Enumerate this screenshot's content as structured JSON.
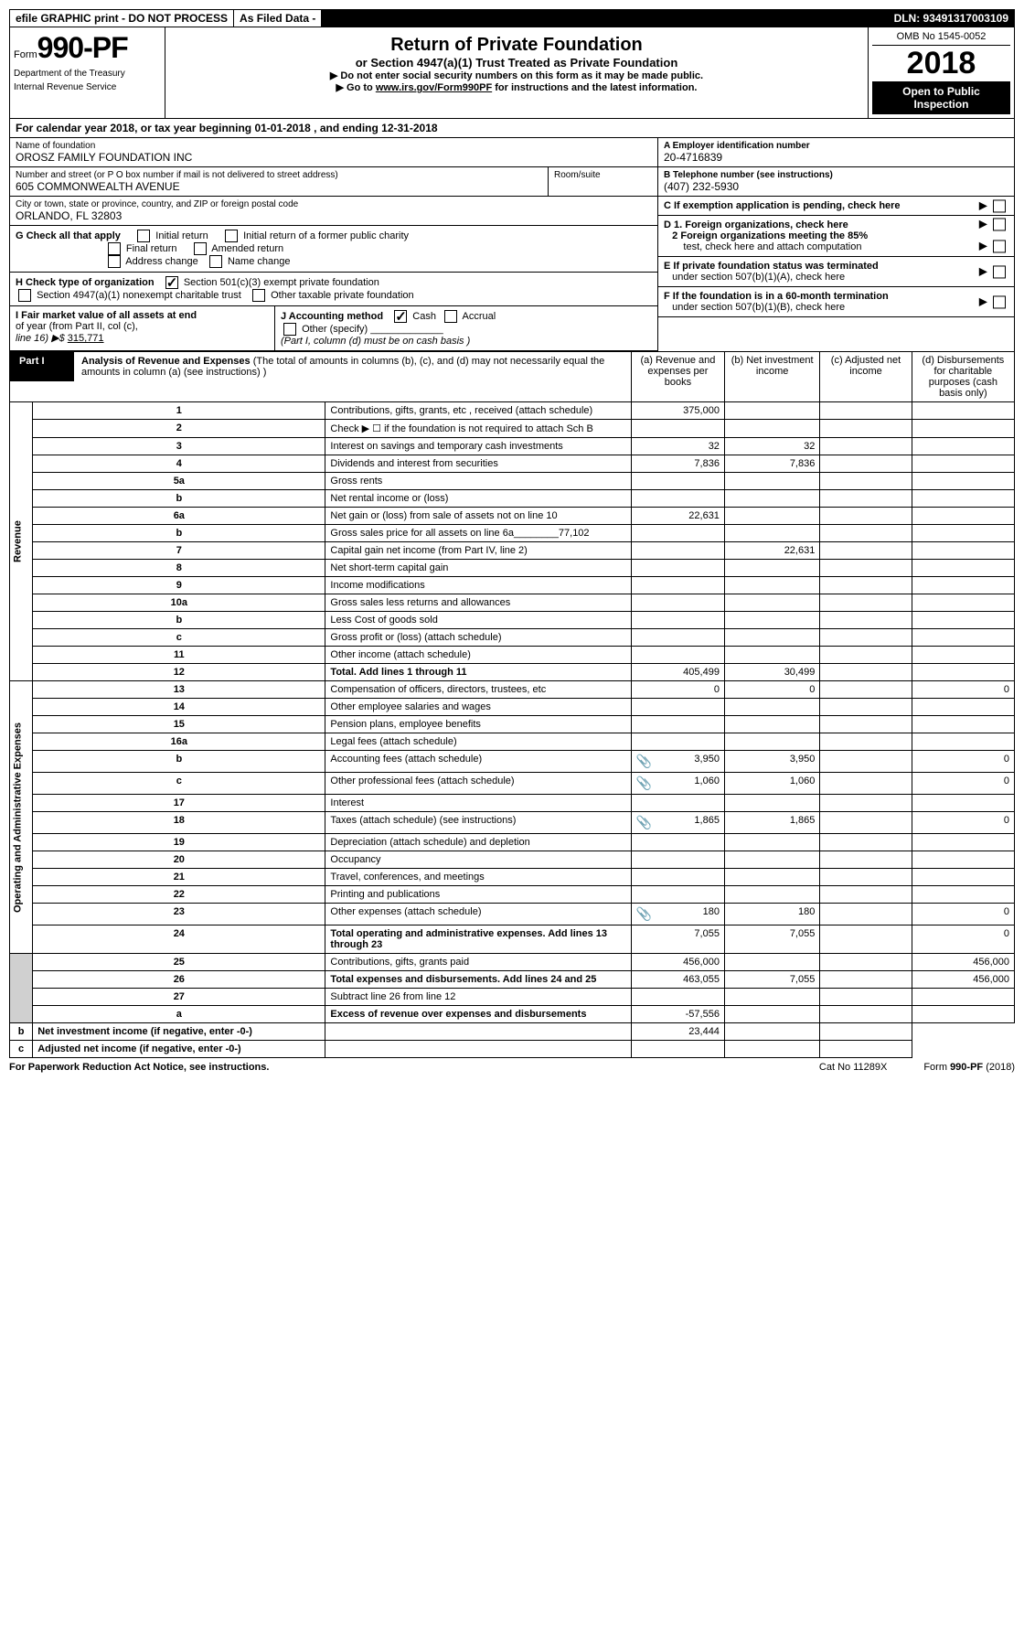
{
  "header": {
    "efile": "efile GRAPHIC print - DO NOT PROCESS",
    "asFiled": "As Filed Data -",
    "dln": "DLN: 93491317003109"
  },
  "formBox": {
    "formWord": "Form",
    "formNum": "990-PF",
    "dept1": "Department of the Treasury",
    "dept2": "Internal Revenue Service"
  },
  "title": {
    "main": "Return of Private Foundation",
    "sub": "or Section 4947(a)(1) Trust Treated as Private Foundation",
    "note1": "▶ Do not enter social security numbers on this form as it may be made public.",
    "note2": "▶ Go to ",
    "link": "www.irs.gov/Form990PF",
    "note2b": " for instructions and the latest information."
  },
  "rightBox": {
    "omb": "OMB No 1545-0052",
    "year": "2018",
    "open": "Open to Public Inspection"
  },
  "calRow": "For calendar year 2018, or tax year beginning 01-01-2018           , and ending 12-31-2018",
  "info": {
    "nameLbl": "Name of foundation",
    "nameVal": "OROSZ FAMILY FOUNDATION INC",
    "addrLbl": "Number and street (or P O  box number if mail is not delivered to street address)",
    "addrVal": "605 COMMONWEALTH AVENUE",
    "roomLbl": "Room/suite",
    "cityLbl": "City or town, state or province, country, and ZIP or foreign postal code",
    "cityVal": "ORLANDO, FL  32803",
    "aLbl": "A Employer identification number",
    "aVal": "20-4716839",
    "bLbl": "B Telephone number (see instructions)",
    "bVal": "(407) 232-5930",
    "cLbl": "C If exemption application is pending, check here",
    "d1": "D 1. Foreign organizations, check here",
    "d2": "2  Foreign organizations meeting the 85%",
    "d2b": "test, check here and attach computation",
    "e": "E  If private foundation status was terminated",
    "eb": "under section 507(b)(1)(A), check here",
    "f": "F  If the foundation is in a 60-month termination",
    "fb": "under section 507(b)(1)(B), check here"
  },
  "g": {
    "lbl": "G Check all that apply",
    "opts": [
      "Initial return",
      "Initial return of a former public charity",
      "Final return",
      "Amended return",
      "Address change",
      "Name change"
    ]
  },
  "h": {
    "lbl": "H Check type of organization",
    "opt1": "Section 501(c)(3) exempt private foundation",
    "opt2": "Section 4947(a)(1) nonexempt charitable trust",
    "opt3": "Other taxable private foundation"
  },
  "i": {
    "lbl": "I Fair market value of all assets at end",
    "lbl2": "of year (from Part II, col  (c),",
    "lbl3": "line 16) ▶$ ",
    "val": "315,771"
  },
  "j": {
    "lbl": "J Accounting method",
    "cash": "Cash",
    "accrual": "Accrual",
    "other": "Other (specify)",
    "note": "(Part I, column (d) must be on cash basis )"
  },
  "part1": {
    "lbl": "Part I",
    "title": "Analysis of Revenue and Expenses",
    "desc": "(The total of amounts in columns (b), (c), and (d) may not necessarily equal the amounts in column (a) (see instructions) )",
    "colA": "(a)    Revenue and expenses per books",
    "colB": "(b)   Net investment income",
    "colC": "(c)   Adjusted net income",
    "colD": "(d)   Disbursements for charitable purposes (cash basis only)"
  },
  "vertLabels": {
    "revenue": "Revenue",
    "expenses": "Operating and Administrative Expenses"
  },
  "rows": [
    {
      "n": "1",
      "d": "Contributions, gifts, grants, etc , received (attach schedule)",
      "a": "375,000",
      "b": "",
      "c": "",
      "dd": ""
    },
    {
      "n": "2",
      "d": "Check ▶ ☐ if the foundation is not required to attach Sch  B",
      "a": "",
      "b": "",
      "c": "",
      "dd": ""
    },
    {
      "n": "3",
      "d": "Interest on savings and temporary cash investments",
      "a": "32",
      "b": "32",
      "c": "",
      "dd": ""
    },
    {
      "n": "4",
      "d": "Dividends and interest from securities",
      "a": "7,836",
      "b": "7,836",
      "c": "",
      "dd": ""
    },
    {
      "n": "5a",
      "d": "Gross rents",
      "a": "",
      "b": "",
      "c": "",
      "dd": ""
    },
    {
      "n": "b",
      "d": "Net rental income or (loss)",
      "a": "",
      "b": "",
      "c": "",
      "dd": ""
    },
    {
      "n": "6a",
      "d": "Net gain or (loss) from sale of assets not on line 10",
      "a": "22,631",
      "b": "",
      "c": "",
      "dd": ""
    },
    {
      "n": "b",
      "d": "Gross sales price for all assets on line 6a________77,102",
      "a": "",
      "b": "",
      "c": "",
      "dd": ""
    },
    {
      "n": "7",
      "d": "Capital gain net income (from Part IV, line 2)",
      "a": "",
      "b": "22,631",
      "c": "",
      "dd": ""
    },
    {
      "n": "8",
      "d": "Net short-term capital gain",
      "a": "",
      "b": "",
      "c": "",
      "dd": ""
    },
    {
      "n": "9",
      "d": "Income modifications",
      "a": "",
      "b": "",
      "c": "",
      "dd": ""
    },
    {
      "n": "10a",
      "d": "Gross sales less returns and allowances",
      "a": "",
      "b": "",
      "c": "",
      "dd": ""
    },
    {
      "n": "b",
      "d": "Less  Cost of goods sold",
      "a": "",
      "b": "",
      "c": "",
      "dd": ""
    },
    {
      "n": "c",
      "d": "Gross profit or (loss) (attach schedule)",
      "a": "",
      "b": "",
      "c": "",
      "dd": ""
    },
    {
      "n": "11",
      "d": "Other income (attach schedule)",
      "a": "",
      "b": "",
      "c": "",
      "dd": ""
    },
    {
      "n": "12",
      "d": "Total. Add lines 1 through 11",
      "a": "405,499",
      "b": "30,499",
      "c": "",
      "dd": "",
      "bold": true
    },
    {
      "n": "13",
      "d": "Compensation of officers, directors, trustees, etc",
      "a": "0",
      "b": "0",
      "c": "",
      "dd": "0"
    },
    {
      "n": "14",
      "d": "Other employee salaries and wages",
      "a": "",
      "b": "",
      "c": "",
      "dd": ""
    },
    {
      "n": "15",
      "d": "Pension plans, employee benefits",
      "a": "",
      "b": "",
      "c": "",
      "dd": ""
    },
    {
      "n": "16a",
      "d": "Legal fees (attach schedule)",
      "a": "",
      "b": "",
      "c": "",
      "dd": ""
    },
    {
      "n": "b",
      "d": "Accounting fees (attach schedule)",
      "a": "3,950",
      "b": "3,950",
      "c": "",
      "dd": "0",
      "clip": true
    },
    {
      "n": "c",
      "d": "Other professional fees (attach schedule)",
      "a": "1,060",
      "b": "1,060",
      "c": "",
      "dd": "0",
      "clip": true
    },
    {
      "n": "17",
      "d": "Interest",
      "a": "",
      "b": "",
      "c": "",
      "dd": ""
    },
    {
      "n": "18",
      "d": "Taxes (attach schedule) (see instructions)",
      "a": "1,865",
      "b": "1,865",
      "c": "",
      "dd": "0",
      "clip": true
    },
    {
      "n": "19",
      "d": "Depreciation (attach schedule) and depletion",
      "a": "",
      "b": "",
      "c": "",
      "dd": ""
    },
    {
      "n": "20",
      "d": "Occupancy",
      "a": "",
      "b": "",
      "c": "",
      "dd": ""
    },
    {
      "n": "21",
      "d": "Travel, conferences, and meetings",
      "a": "",
      "b": "",
      "c": "",
      "dd": ""
    },
    {
      "n": "22",
      "d": "Printing and publications",
      "a": "",
      "b": "",
      "c": "",
      "dd": ""
    },
    {
      "n": "23",
      "d": "Other expenses (attach schedule)",
      "a": "180",
      "b": "180",
      "c": "",
      "dd": "0",
      "clip": true
    },
    {
      "n": "24",
      "d": "Total operating and administrative expenses. Add lines 13 through 23",
      "a": "7,055",
      "b": "7,055",
      "c": "",
      "dd": "0",
      "bold": true
    },
    {
      "n": "25",
      "d": "Contributions, gifts, grants paid",
      "a": "456,000",
      "b": "",
      "c": "",
      "dd": "456,000"
    },
    {
      "n": "26",
      "d": "Total expenses and disbursements. Add lines 24 and 25",
      "a": "463,055",
      "b": "7,055",
      "c": "",
      "dd": "456,000",
      "bold": true
    },
    {
      "n": "27",
      "d": "Subtract line 26 from line 12",
      "a": "",
      "b": "",
      "c": "",
      "dd": ""
    },
    {
      "n": "a",
      "d": "Excess of revenue over expenses and disbursements",
      "a": "-57,556",
      "b": "",
      "c": "",
      "dd": "",
      "bold": true
    },
    {
      "n": "b",
      "d": "Net investment income (if negative, enter -0-)",
      "a": "",
      "b": "23,444",
      "c": "",
      "dd": "",
      "bold": true
    },
    {
      "n": "c",
      "d": "Adjusted net income (if negative, enter -0-)",
      "a": "",
      "b": "",
      "c": "",
      "dd": "",
      "bold": true
    }
  ],
  "footer": {
    "left": "For Paperwork Reduction Act Notice, see instructions.",
    "mid": "Cat  No  11289X",
    "right": "Form 990-PF (2018)"
  }
}
